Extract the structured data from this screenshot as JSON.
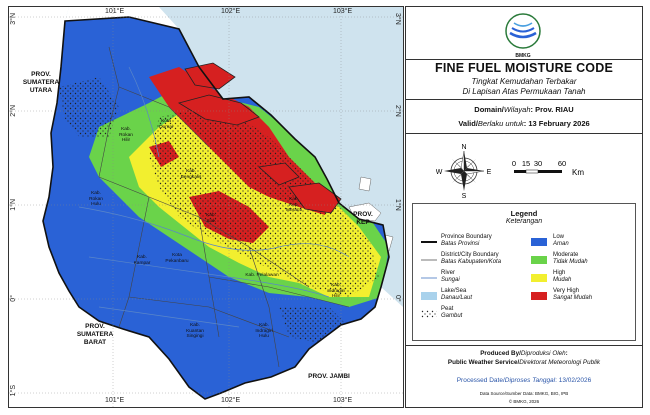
{
  "map": {
    "lon_ticks": [
      "101°E",
      "102°E",
      "103°E"
    ],
    "lat_ticks": [
      "3°N",
      "2°N",
      "1°N",
      "0°",
      "1°S"
    ],
    "neighbor_labels": [
      {
        "key": "sumut",
        "text": "PROV.\nSUMATERA\nUTARA"
      },
      {
        "key": "sumbar",
        "text": "PROV.\nSUMATERA\nBARAT"
      },
      {
        "key": "jambi",
        "text": "PROV. JAMBI"
      },
      {
        "key": "kepri",
        "text": "PROV.\nKEP"
      }
    ],
    "district_labels": [
      {
        "key": "rohil",
        "text": "Kab.\nRokan\nHilir"
      },
      {
        "key": "dumai",
        "text": "Kota\nDumai"
      },
      {
        "key": "bengkalis",
        "text": "Kab.\nBengkalis"
      },
      {
        "key": "meranti",
        "text": "Kab.\nKep.\nMeranti"
      },
      {
        "key": "rohul",
        "text": "Kab.\nRokan\nHulu"
      },
      {
        "key": "siak",
        "text": "Kab.\nSiak"
      },
      {
        "key": "pekanbaru",
        "text": "Kota\nPekanbaru"
      },
      {
        "key": "kampar",
        "text": "Kab.\nKampar"
      },
      {
        "key": "pelalawan",
        "text": "Kab. Pelalawan"
      },
      {
        "key": "inhil",
        "text": "Kab.\nIndragiri\nHilir"
      },
      {
        "key": "kuansing",
        "text": "Kab.\nKuantan\nSingingi"
      },
      {
        "key": "inhu",
        "text": "Kab.\nIndragiri\nHulu"
      }
    ],
    "colors": {
      "sea": "#cfe3ee",
      "outside": "#ffffff",
      "low": "#2a62d6",
      "moderate": "#6ad34a",
      "high": "#f2ef2f",
      "very_high": "#d62020"
    }
  },
  "panel": {
    "logo_text": "BMKG",
    "title": "FINE FUEL MOISTURE CODE",
    "subtitle_1": "Tingkat Kemudahan Terbakar",
    "subtitle_2": "Di Lapisan Atas Permukaan Tanah",
    "domain_label": "Domain/",
    "domain_label_it": "Wilayah",
    "domain_value": ": Prov. RIAU",
    "valid_label": "Valid/",
    "valid_label_it": "Berlaku untuk",
    "valid_value": ": 13 February 2026",
    "compass": {
      "n": "N",
      "s": "S",
      "e": "E",
      "w": "W",
      "icon": "compass-rose-icon"
    },
    "scale": {
      "ticks": [
        "0",
        "15",
        "30",
        "60"
      ],
      "unit": "Km"
    }
  },
  "legend": {
    "title": "Legend",
    "subtitle": "Keterangan",
    "left_items": [
      {
        "key": "prov",
        "label": "Province Boundary",
        "label_it": "Batas Provinsi"
      },
      {
        "key": "district",
        "label": "District/City Boundary",
        "label_it": "Batas Kabupaten/Kota"
      },
      {
        "key": "river",
        "label": "River",
        "label_it": "Sungai"
      },
      {
        "key": "lake",
        "label": "Lake/Sea",
        "label_it": "Danau/Laut"
      },
      {
        "key": "peat",
        "label": "Peat",
        "label_it": "Gambut"
      }
    ],
    "right_items": [
      {
        "key": "low",
        "label": "Low",
        "label_it": "Aman",
        "color": "#2a62d6"
      },
      {
        "key": "moderate",
        "label": "Moderate",
        "label_it": "Tidak Mudah",
        "color": "#6ad34a"
      },
      {
        "key": "high",
        "label": "High",
        "label_it": "Mudah",
        "color": "#f2ef2f"
      },
      {
        "key": "very_high",
        "label": "Very High",
        "label_it": "Sangat Mudah",
        "color": "#d62020"
      }
    ]
  },
  "credits": {
    "produced_by": "Produced By/",
    "produced_by_it": "Diproduksi Oleh",
    "produced_by_colon": ":",
    "producer": "Public Weather Service/",
    "producer_it": "Direktorat Meteorologi Publik",
    "processed_label": "Processed Date/",
    "processed_label_it": "Diproses Tanggal",
    "processed_value": ": 13/02/2026",
    "source": "Data Source/Sumber Data: BMKG, BIG, IPB",
    "copyright": "© BMKG, 2026"
  }
}
